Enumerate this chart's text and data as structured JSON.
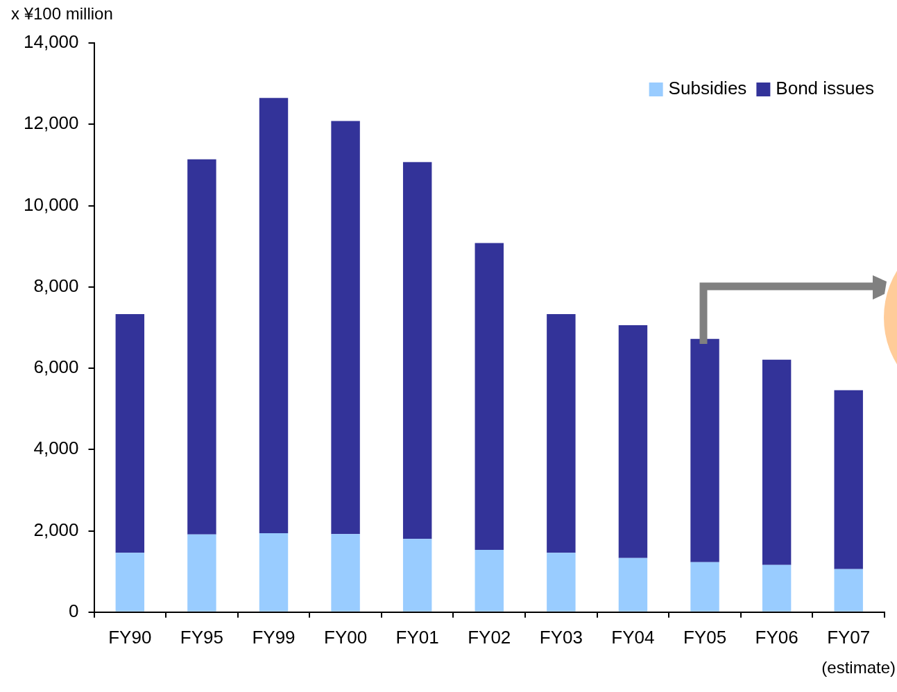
{
  "chart_data": {
    "type": "bar",
    "stacked": true,
    "ylabel": "x ¥100 million",
    "categories": [
      "FY90",
      "FY95",
      "FY99",
      "FY00",
      "FY01",
      "FY02",
      "FY03",
      "FY04",
      "FY05",
      "FY06",
      "FY07"
    ],
    "series": [
      {
        "name": "Subsidies",
        "color": "#99ccff",
        "values": [
          1460,
          1910,
          1940,
          1920,
          1800,
          1530,
          1460,
          1330,
          1230,
          1160,
          1060
        ]
      },
      {
        "name": "Bond issues",
        "color": "#333399",
        "values": [
          5870,
          9230,
          10710,
          10160,
          9270,
          7550,
          5870,
          5730,
          5490,
          5050,
          4400
        ]
      }
    ],
    "ylim": [
      0,
      14000
    ],
    "yticks": [
      0,
      {
        "value": 2000,
        "label": "2,000"
      },
      {
        "value": 4000,
        "label": "4,000"
      },
      {
        "value": 6000,
        "label": "6,000"
      },
      {
        "value": 8000,
        "label": "8,000"
      },
      {
        "value": 10000,
        "label": "10,000"
      },
      {
        "value": 12000,
        "label": "12,000"
      },
      {
        "value": 14000,
        "label": "14,000"
      }
    ],
    "legend": "top right",
    "annotations": [
      "(estimate)"
    ]
  }
}
